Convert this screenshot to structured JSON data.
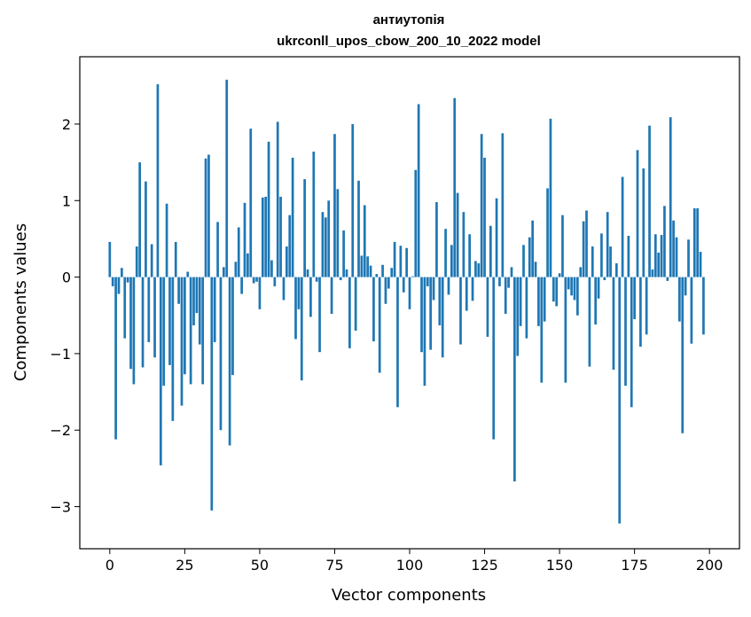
{
  "chart_data": {
    "type": "bar",
    "title_lines": [
      "антиутопія",
      "ukrconll_upos_cbow_200_10_2022 model"
    ],
    "xlabel": "Vector components",
    "ylabel": "Components values",
    "xlim": [
      -10,
      210
    ],
    "ylim": [
      -3.55,
      2.88
    ],
    "xticks": [
      0,
      25,
      50,
      75,
      100,
      125,
      150,
      175,
      200
    ],
    "yticks": [
      -3,
      -2,
      -1,
      0,
      1,
      2
    ],
    "ytick_labels": [
      "−3",
      "−2",
      "−1",
      "0",
      "1",
      "2"
    ],
    "bar_color": "#1f77b4",
    "grid": false,
    "values": [
      0.46,
      -0.12,
      -2.12,
      -0.22,
      0.12,
      -0.8,
      -0.07,
      -1.2,
      -1.4,
      0.4,
      1.5,
      -1.18,
      1.25,
      -0.85,
      0.43,
      -1.05,
      2.52,
      -2.46,
      -1.42,
      0.96,
      -1.15,
      -1.88,
      0.46,
      -0.35,
      -1.68,
      -1.27,
      0.07,
      -1.4,
      -0.63,
      -0.47,
      -0.88,
      -1.4,
      1.55,
      1.6,
      -3.05,
      -0.85,
      0.72,
      -2.0,
      0.13,
      2.58,
      -2.2,
      -1.28,
      0.2,
      0.65,
      -0.22,
      0.97,
      0.31,
      1.94,
      -0.08,
      -0.06,
      -0.42,
      1.04,
      1.05,
      1.77,
      0.22,
      -0.12,
      2.03,
      1.05,
      -0.3,
      0.4,
      0.81,
      1.56,
      -0.81,
      -0.42,
      -1.35,
      1.28,
      0.1,
      -0.52,
      1.64,
      -0.06,
      -0.98,
      0.85,
      0.78,
      1.0,
      -0.48,
      1.87,
      1.15,
      -0.04,
      0.61,
      0.1,
      -0.93,
      2.0,
      -0.7,
      1.26,
      0.28,
      0.94,
      0.27,
      0.15,
      -0.84,
      0.04,
      -1.25,
      0.16,
      -0.35,
      -0.15,
      0.12,
      0.46,
      -1.7,
      0.41,
      -0.2,
      0.38,
      -0.42,
      0.01,
      1.4,
      2.26,
      -0.98,
      -1.42,
      -0.12,
      -0.95,
      -0.3,
      0.98,
      -0.63,
      -1.05,
      0.63,
      -0.23,
      0.42,
      2.34,
      1.1,
      -0.88,
      0.85,
      -0.44,
      0.56,
      -0.31,
      0.21,
      0.18,
      1.87,
      1.56,
      -0.78,
      0.67,
      -2.12,
      1.03,
      -0.12,
      1.88,
      -0.48,
      -0.14,
      0.13,
      -2.67,
      -1.03,
      -0.64,
      0.42,
      -0.8,
      0.52,
      0.74,
      0.2,
      -0.64,
      -1.38,
      -0.58,
      1.16,
      2.07,
      -0.32,
      -0.38,
      0.05,
      0.81,
      -1.38,
      -0.16,
      -0.24,
      -0.3,
      -0.5,
      0.13,
      0.73,
      0.87,
      -1.17,
      0.4,
      -0.62,
      -0.28,
      0.57,
      -0.04,
      0.85,
      0.4,
      -1.21,
      0.18,
      -3.22,
      1.31,
      -1.42,
      0.54,
      -1.7,
      -0.55,
      1.66,
      -0.91,
      1.42,
      -0.75,
      1.98,
      0.1,
      0.56,
      0.32,
      0.55,
      0.93,
      -0.05,
      2.09,
      0.74,
      0.52,
      -0.58,
      -2.04,
      -0.24,
      0.49,
      -0.87,
      0.9,
      0.9,
      0.33,
      -0.75
    ]
  }
}
